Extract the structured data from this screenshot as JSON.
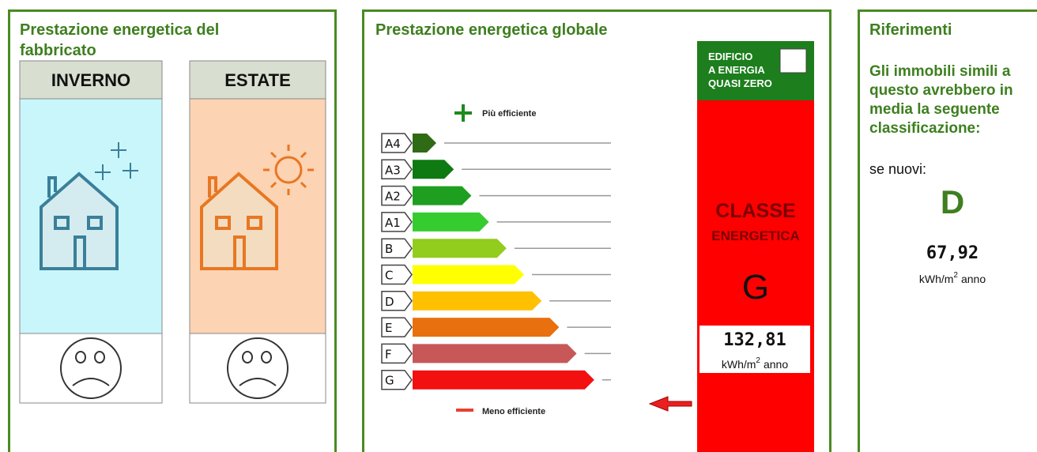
{
  "building_panel": {
    "title_line1": "Prestazione energetica del",
    "title_line2": "fabbricato",
    "winter": "INVERNO",
    "summer": "ESTATE"
  },
  "global_panel": {
    "title": "Prestazione energetica globale",
    "more_efficient": "Più efficiente",
    "less_efficient": "Meno efficiente",
    "classes": [
      {
        "label": "A4",
        "color": "#2f6a14"
      },
      {
        "label": "A3",
        "color": "#0f7a12"
      },
      {
        "label": "A2",
        "color": "#1e9f20"
      },
      {
        "label": "A1",
        "color": "#36cc30"
      },
      {
        "label": "B",
        "color": "#92cc1c"
      },
      {
        "label": "C",
        "color": "#ffff00"
      },
      {
        "label": "D",
        "color": "#ffc000"
      },
      {
        "label": "E",
        "color": "#e8700e"
      },
      {
        "label": "F",
        "color": "#c85858"
      },
      {
        "label": "G",
        "color": "#f21010"
      }
    ],
    "nzeb": [
      "EDIFICIO",
      "A ENERGIA",
      "QUASI ZERO"
    ],
    "class_heading": "CLASSE",
    "class_subheading": "ENERGETICA",
    "class_value": "G",
    "value": "132,81",
    "unit": {
      "base": "kWh/m",
      "exponent": "2",
      "suffix": "anno"
    }
  },
  "references_panel": {
    "title": "Riferimenti",
    "text": [
      "Gli immobili simili a",
      "questo avrebbero in",
      "media la seguente",
      "classificazione:"
    ],
    "new_label": "se nuovi:",
    "class_value": "D",
    "value": "67,92",
    "unit": {
      "base": "kWh/m",
      "exponent": "2",
      "suffix": "anno"
    }
  }
}
